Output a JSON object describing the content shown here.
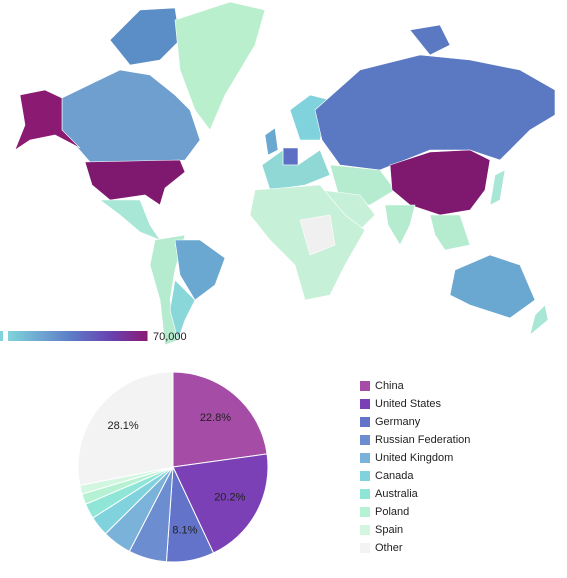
{
  "map": {
    "colorbar_ticks": [
      {
        "value": 70000,
        "label": "70,000"
      }
    ]
  },
  "chart_data": {
    "type": "pie",
    "categories": [
      "China",
      "United States",
      "Germany",
      "Russian Federation",
      "United Kingdom",
      "Canada",
      "Australia",
      "Poland",
      "Spain",
      "Other"
    ],
    "values": [
      22.8,
      20.2,
      8.1,
      6.5,
      5.0,
      3.4,
      2.6,
      1.8,
      1.5,
      28.1
    ],
    "value_labels": [
      "22.8%",
      "20.2%",
      "8.1%",
      null,
      null,
      null,
      null,
      null,
      null,
      "28.1%"
    ],
    "colors": [
      "#a54ca6",
      "#7b40b5",
      "#6273c9",
      "#6d8dd1",
      "#7bb2d9",
      "#80d3dc",
      "#90e6d6",
      "#b5f1d2",
      "#d3f6e1",
      "#f3f3f3"
    ]
  }
}
